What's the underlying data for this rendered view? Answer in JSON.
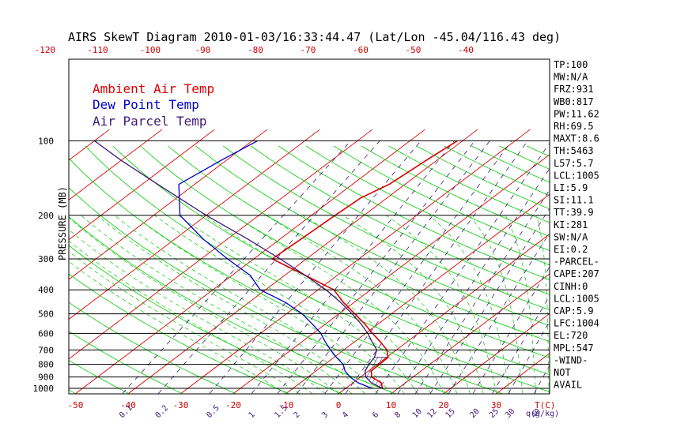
{
  "chart_data": {
    "type": "line",
    "title": "AIRS SkewT Diagram 2010-01-03/16:33:44.47 (Lat/Lon -45.04/116.43 deg)",
    "ylabel": "PRESSURE (MB)",
    "xlabel": "T(C)",
    "mixing_label": "q(g/kg)",
    "y_scale": "log",
    "ylim": [
      1050,
      100
    ],
    "pressure_ticks": [
      100,
      200,
      300,
      400,
      500,
      600,
      700,
      800,
      900,
      1000
    ],
    "bottom_temp_ticks": [
      -50,
      -40,
      -30,
      -20,
      -10,
      0,
      10,
      20,
      30
    ],
    "top_temp_ticks": [
      -120,
      -110,
      -100,
      -90,
      -80,
      -70,
      -60,
      -50,
      -40
    ],
    "mixing_ratio_ticks": [
      "0.1",
      "0.2",
      "0.5",
      "1",
      "1.5",
      "2",
      "3",
      "4",
      "6",
      "8",
      "10",
      "12",
      "15",
      "20",
      "25",
      "30",
      "40"
    ],
    "legend": [
      {
        "name": "Ambient Air Temp",
        "color": "#dd0000"
      },
      {
        "name": "Dew Point Temp",
        "color": "#0000cc"
      },
      {
        "name": "Air Parcel Temp",
        "color": "#3d1a78"
      }
    ],
    "grid_colors": {
      "isotherms": "#dd0000",
      "dry_adiabats": "#00cc00",
      "moist_adiabats": "#00cc00",
      "mixing_ratio": "#3d1a78",
      "isobars": "#000000"
    },
    "series": [
      {
        "name": "Ambient Air Temp",
        "color": "#dd0000",
        "points": [
          [
            1000,
            7.0
          ],
          [
            950,
            5.4
          ],
          [
            900,
            2.1
          ],
          [
            850,
            0.5
          ],
          [
            800,
            0.4
          ],
          [
            750,
            0.3
          ],
          [
            700,
            -1.8
          ],
          [
            650,
            -5.0
          ],
          [
            600,
            -8.7
          ],
          [
            550,
            -12.5
          ],
          [
            500,
            -17.0
          ],
          [
            450,
            -22.0
          ],
          [
            400,
            -27.0
          ],
          [
            350,
            -36.0
          ],
          [
            300,
            -46.5
          ],
          [
            250,
            -46.0
          ],
          [
            200,
            -45.5
          ],
          [
            170,
            -45.0
          ],
          [
            150,
            -43.0
          ],
          [
            120,
            -42.0
          ],
          [
            100,
            -41.0
          ]
        ]
      },
      {
        "name": "Dew Point Temp",
        "color": "#0000cc",
        "points": [
          [
            1000,
            5.0
          ],
          [
            950,
            1.0
          ],
          [
            900,
            -2.0
          ],
          [
            850,
            -4.5
          ],
          [
            800,
            -6.5
          ],
          [
            750,
            -9.5
          ],
          [
            700,
            -12.5
          ],
          [
            650,
            -15.5
          ],
          [
            600,
            -18.5
          ],
          [
            550,
            -22.5
          ],
          [
            500,
            -27.0
          ],
          [
            450,
            -33.0
          ],
          [
            400,
            -41.0
          ],
          [
            350,
            -46.5
          ],
          [
            300,
            -55.0
          ],
          [
            250,
            -64.5
          ],
          [
            200,
            -75.0
          ],
          [
            150,
            -83.0
          ],
          [
            120,
            -81.0
          ],
          [
            100,
            -79.0
          ]
        ]
      },
      {
        "name": "Air Parcel Temp",
        "color": "#3d1a78",
        "points": [
          [
            1000,
            7.0
          ],
          [
            950,
            3.5
          ],
          [
            900,
            1.0
          ],
          [
            850,
            -0.7
          ],
          [
            800,
            -1.6
          ],
          [
            750,
            -2.3
          ],
          [
            700,
            -3.7
          ],
          [
            650,
            -6.6
          ],
          [
            600,
            -9.6
          ],
          [
            550,
            -13.2
          ],
          [
            500,
            -17.5
          ],
          [
            450,
            -22.5
          ],
          [
            400,
            -28.5
          ],
          [
            350,
            -36.0
          ],
          [
            300,
            -45.0
          ],
          [
            250,
            -56.0
          ],
          [
            200,
            -70.0
          ],
          [
            150,
            -87.0
          ],
          [
            120,
            -100.0
          ],
          [
            100,
            -110.0
          ]
        ]
      }
    ],
    "indices": [
      "TP:100",
      "MW:N/A",
      "FRZ:931",
      "WB0:817",
      "PW:11.62",
      "RH:69.5",
      "MAXT:8.6",
      "TH:5463",
      "L57:5.7",
      "LCL:1005",
      "LI:5.9",
      "SI:11.1",
      "TT:39.9",
      "KI:281",
      "SW:N/A",
      "EI:0.2",
      "-PARCEL-",
      "CAPE:207",
      "CINH:0",
      "LCL:1005",
      "CAP:5.9",
      "LFC:1004",
      "EL:720",
      "MPL:547",
      "-WIND-",
      "NOT",
      "AVAIL"
    ]
  }
}
